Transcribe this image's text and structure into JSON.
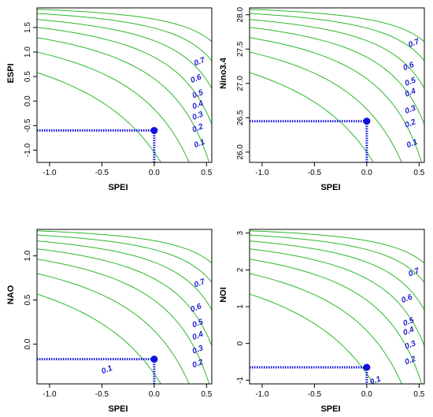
{
  "chart_data": [
    {
      "type": "contour",
      "xlabel": "SPEI",
      "ylabel": "ESPI",
      "xlim": [
        -1.12,
        0.55
      ],
      "ylim": [
        -1.25,
        1.9
      ],
      "xticks": [
        "-1.0",
        "-0.5",
        "0.0",
        "0.5"
      ],
      "yticks": [
        "-1.0",
        "-0.5",
        "0.0",
        "0.5",
        "1.0",
        "1.5"
      ],
      "contour_levels": [
        "0.1",
        "0.2",
        "0.3",
        "0.4",
        "0.5",
        "0.6",
        "0.7"
      ],
      "point": {
        "x": 0.0,
        "y": -0.6
      },
      "grid": false,
      "colors": {
        "contour": "#2db82d",
        "marker": "#1010e0",
        "labels": "#1f1fd1"
      }
    },
    {
      "type": "contour",
      "xlabel": "SPEI",
      "ylabel": "Nino3.4",
      "xlim": [
        -1.12,
        0.55
      ],
      "ylim": [
        25.85,
        28.1
      ],
      "xticks": [
        "-1.0",
        "-0.5",
        "0.0",
        "0.5"
      ],
      "yticks": [
        "26.0",
        "26.5",
        "27.0",
        "27.5",
        "28.0"
      ],
      "contour_levels": [
        "0.1",
        "0.2",
        "0.3",
        "0.4",
        "0.5",
        "0.6",
        "0.7"
      ],
      "point": {
        "x": 0.0,
        "y": 26.45
      },
      "grid": false,
      "colors": {
        "contour": "#2db82d",
        "marker": "#1010e0",
        "labels": "#1f1fd1"
      }
    },
    {
      "type": "contour",
      "xlabel": "SPEI",
      "ylabel": "NAO",
      "xlim": [
        -1.12,
        0.55
      ],
      "ylim": [
        -0.45,
        1.3
      ],
      "xticks": [
        "-1.0",
        "-0.5",
        "0.0",
        "0.5"
      ],
      "yticks": [
        "0.0",
        "0.5",
        "1.0"
      ],
      "contour_levels": [
        "0.1",
        "0.2",
        "0.3",
        "0.4",
        "0.5",
        "0.6",
        "0.7"
      ],
      "point": {
        "x": 0.0,
        "y": -0.17
      },
      "grid": false,
      "colors": {
        "contour": "#2db82d",
        "marker": "#1010e0",
        "labels": "#1f1fd1"
      }
    },
    {
      "type": "contour",
      "xlabel": "SPEI",
      "ylabel": "NOI",
      "xlim": [
        -1.12,
        0.55
      ],
      "ylim": [
        -1.1,
        3.1
      ],
      "xticks": [
        "-1.0",
        "-0.5",
        "0.0",
        "0.5"
      ],
      "yticks": [
        "-1",
        "0",
        "1",
        "2",
        "3"
      ],
      "contour_levels": [
        "0.1",
        "0.2",
        "0.3",
        "0.4",
        "0.5",
        "0.6",
        "0.7"
      ],
      "point": {
        "x": 0.0,
        "y": -0.65
      },
      "grid": false,
      "colors": {
        "contour": "#2db82d",
        "marker": "#1010e0",
        "labels": "#1f1fd1"
      }
    }
  ]
}
